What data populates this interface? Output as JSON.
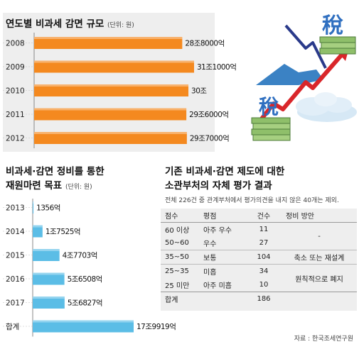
{
  "top_chart": {
    "title": "연도별 비과세 감면 규모",
    "unit": "(단위: 원)"
  },
  "bottom_chart": {
    "title_line1": "비과세·감면 정비를 통한",
    "title_line2": "재원마련 목표",
    "unit": "(단위: 원)"
  },
  "evaluation": {
    "title_line1": "기존 비과세·감면 제도에 대한",
    "title_line2": "소관부처의 자체 평가 결과",
    "note": "전체 226건 중 관계부처에서 평가의견을 내지 않은 40개는 제외.",
    "headers": [
      "점수",
      "평점",
      "건수",
      "정비 방안"
    ],
    "rows": [
      {
        "score": "60 이상",
        "grade": "아주 우수",
        "count": "11"
      },
      {
        "score": "50~60",
        "grade": "우수",
        "count": "27"
      },
      {
        "score": "35~50",
        "grade": "보통",
        "count": "104"
      },
      {
        "score": "25~35",
        "grade": "미흡",
        "count": "34"
      },
      {
        "score": "25 미만",
        "grade": "아주 미흡",
        "count": "10"
      }
    ],
    "plans": [
      "-",
      "축소 또는 재설계",
      "원칙적으로 폐지"
    ],
    "total_label": "합계",
    "total_count": "186"
  },
  "illustration": {
    "tax_char": "稅"
  },
  "source": "자료 : 한국조세연구원",
  "colors": {
    "orange": "#f4891f",
    "blue": "#5bbde6",
    "arrow_red": "#d9262a",
    "panel_gray": "#eeeeee"
  },
  "chart_data": [
    {
      "type": "bar",
      "orientation": "horizontal",
      "categories": [
        "2008",
        "2009",
        "2010",
        "2011",
        "2012"
      ],
      "values": [
        28.8,
        31.1,
        30.0,
        29.6,
        29.7
      ],
      "unit_label": "조원",
      "data_labels": [
        "28조8000억",
        "31조1000억",
        "30조",
        "29조6000억",
        "29조7000억"
      ],
      "xlim": [
        0,
        31.1
      ]
    },
    {
      "type": "bar",
      "orientation": "horizontal",
      "categories": [
        "2013",
        "2014",
        "2015",
        "2016",
        "2017",
        "합계"
      ],
      "values": [
        0.1356,
        1.7525,
        4.7703,
        5.6508,
        5.6827,
        17.9919
      ],
      "unit_label": "조원",
      "data_labels": [
        "1356억",
        "1조7525억",
        "4조7703억",
        "5조6508억",
        "5조6827억",
        "17조9919억"
      ],
      "xlim": [
        0,
        17.9919
      ]
    }
  ]
}
